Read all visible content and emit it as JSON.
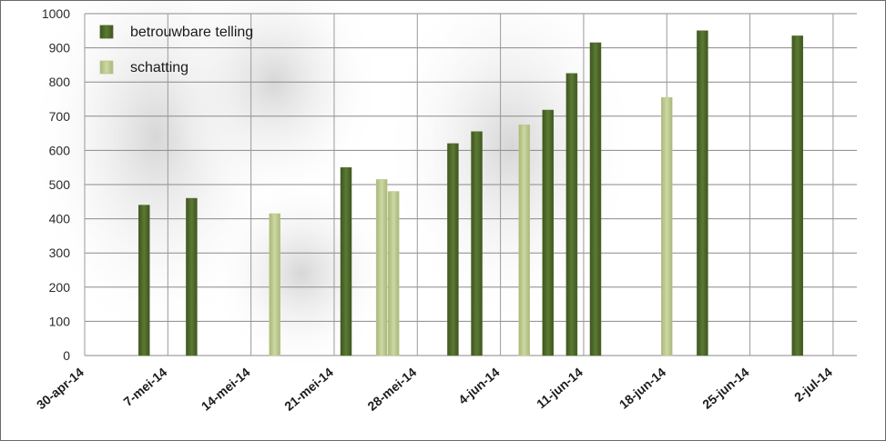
{
  "chart_data": {
    "type": "bar",
    "title": "",
    "xlabel": "",
    "ylabel": "",
    "ylim": [
      0,
      1000
    ],
    "yticks": [
      0,
      100,
      200,
      300,
      400,
      500,
      600,
      700,
      800,
      900,
      1000
    ],
    "x_range": [
      "2014-04-30",
      "2014-07-04"
    ],
    "xticks": [
      {
        "date": "2014-04-30",
        "label": "30-apr-14"
      },
      {
        "date": "2014-05-07",
        "label": "7-mei-14"
      },
      {
        "date": "2014-05-14",
        "label": "14-mei-14"
      },
      {
        "date": "2014-05-21",
        "label": "21-mei-14"
      },
      {
        "date": "2014-05-28",
        "label": "28-mei-14"
      },
      {
        "date": "2014-06-04",
        "label": "4-jun-14"
      },
      {
        "date": "2014-06-11",
        "label": "11-jun-14"
      },
      {
        "date": "2014-06-18",
        "label": "18-jun-14"
      },
      {
        "date": "2014-06-25",
        "label": "25-jun-14"
      },
      {
        "date": "2014-07-02",
        "label": "2-jul-14"
      }
    ],
    "grid": true,
    "legend_position": "top-left",
    "series": [
      {
        "name": "betrouwbare telling",
        "color": "#4f6b2a",
        "points": [
          {
            "date": "2014-05-05",
            "value": 440
          },
          {
            "date": "2014-05-09",
            "value": 460
          },
          {
            "date": "2014-05-22",
            "value": 550
          },
          {
            "date": "2014-05-31",
            "value": 620
          },
          {
            "date": "2014-06-02",
            "value": 655
          },
          {
            "date": "2014-06-08",
            "value": 718
          },
          {
            "date": "2014-06-10",
            "value": 825
          },
          {
            "date": "2014-06-12",
            "value": 915
          },
          {
            "date": "2014-06-21",
            "value": 950
          },
          {
            "date": "2014-06-29",
            "value": 935
          }
        ]
      },
      {
        "name": "schatting",
        "color": "#bcc98e",
        "points": [
          {
            "date": "2014-05-16",
            "value": 415
          },
          {
            "date": "2014-05-25",
            "value": 515
          },
          {
            "date": "2014-05-26",
            "value": 480
          },
          {
            "date": "2014-06-06",
            "value": 675
          },
          {
            "date": "2014-06-18",
            "value": 755
          }
        ]
      }
    ]
  }
}
